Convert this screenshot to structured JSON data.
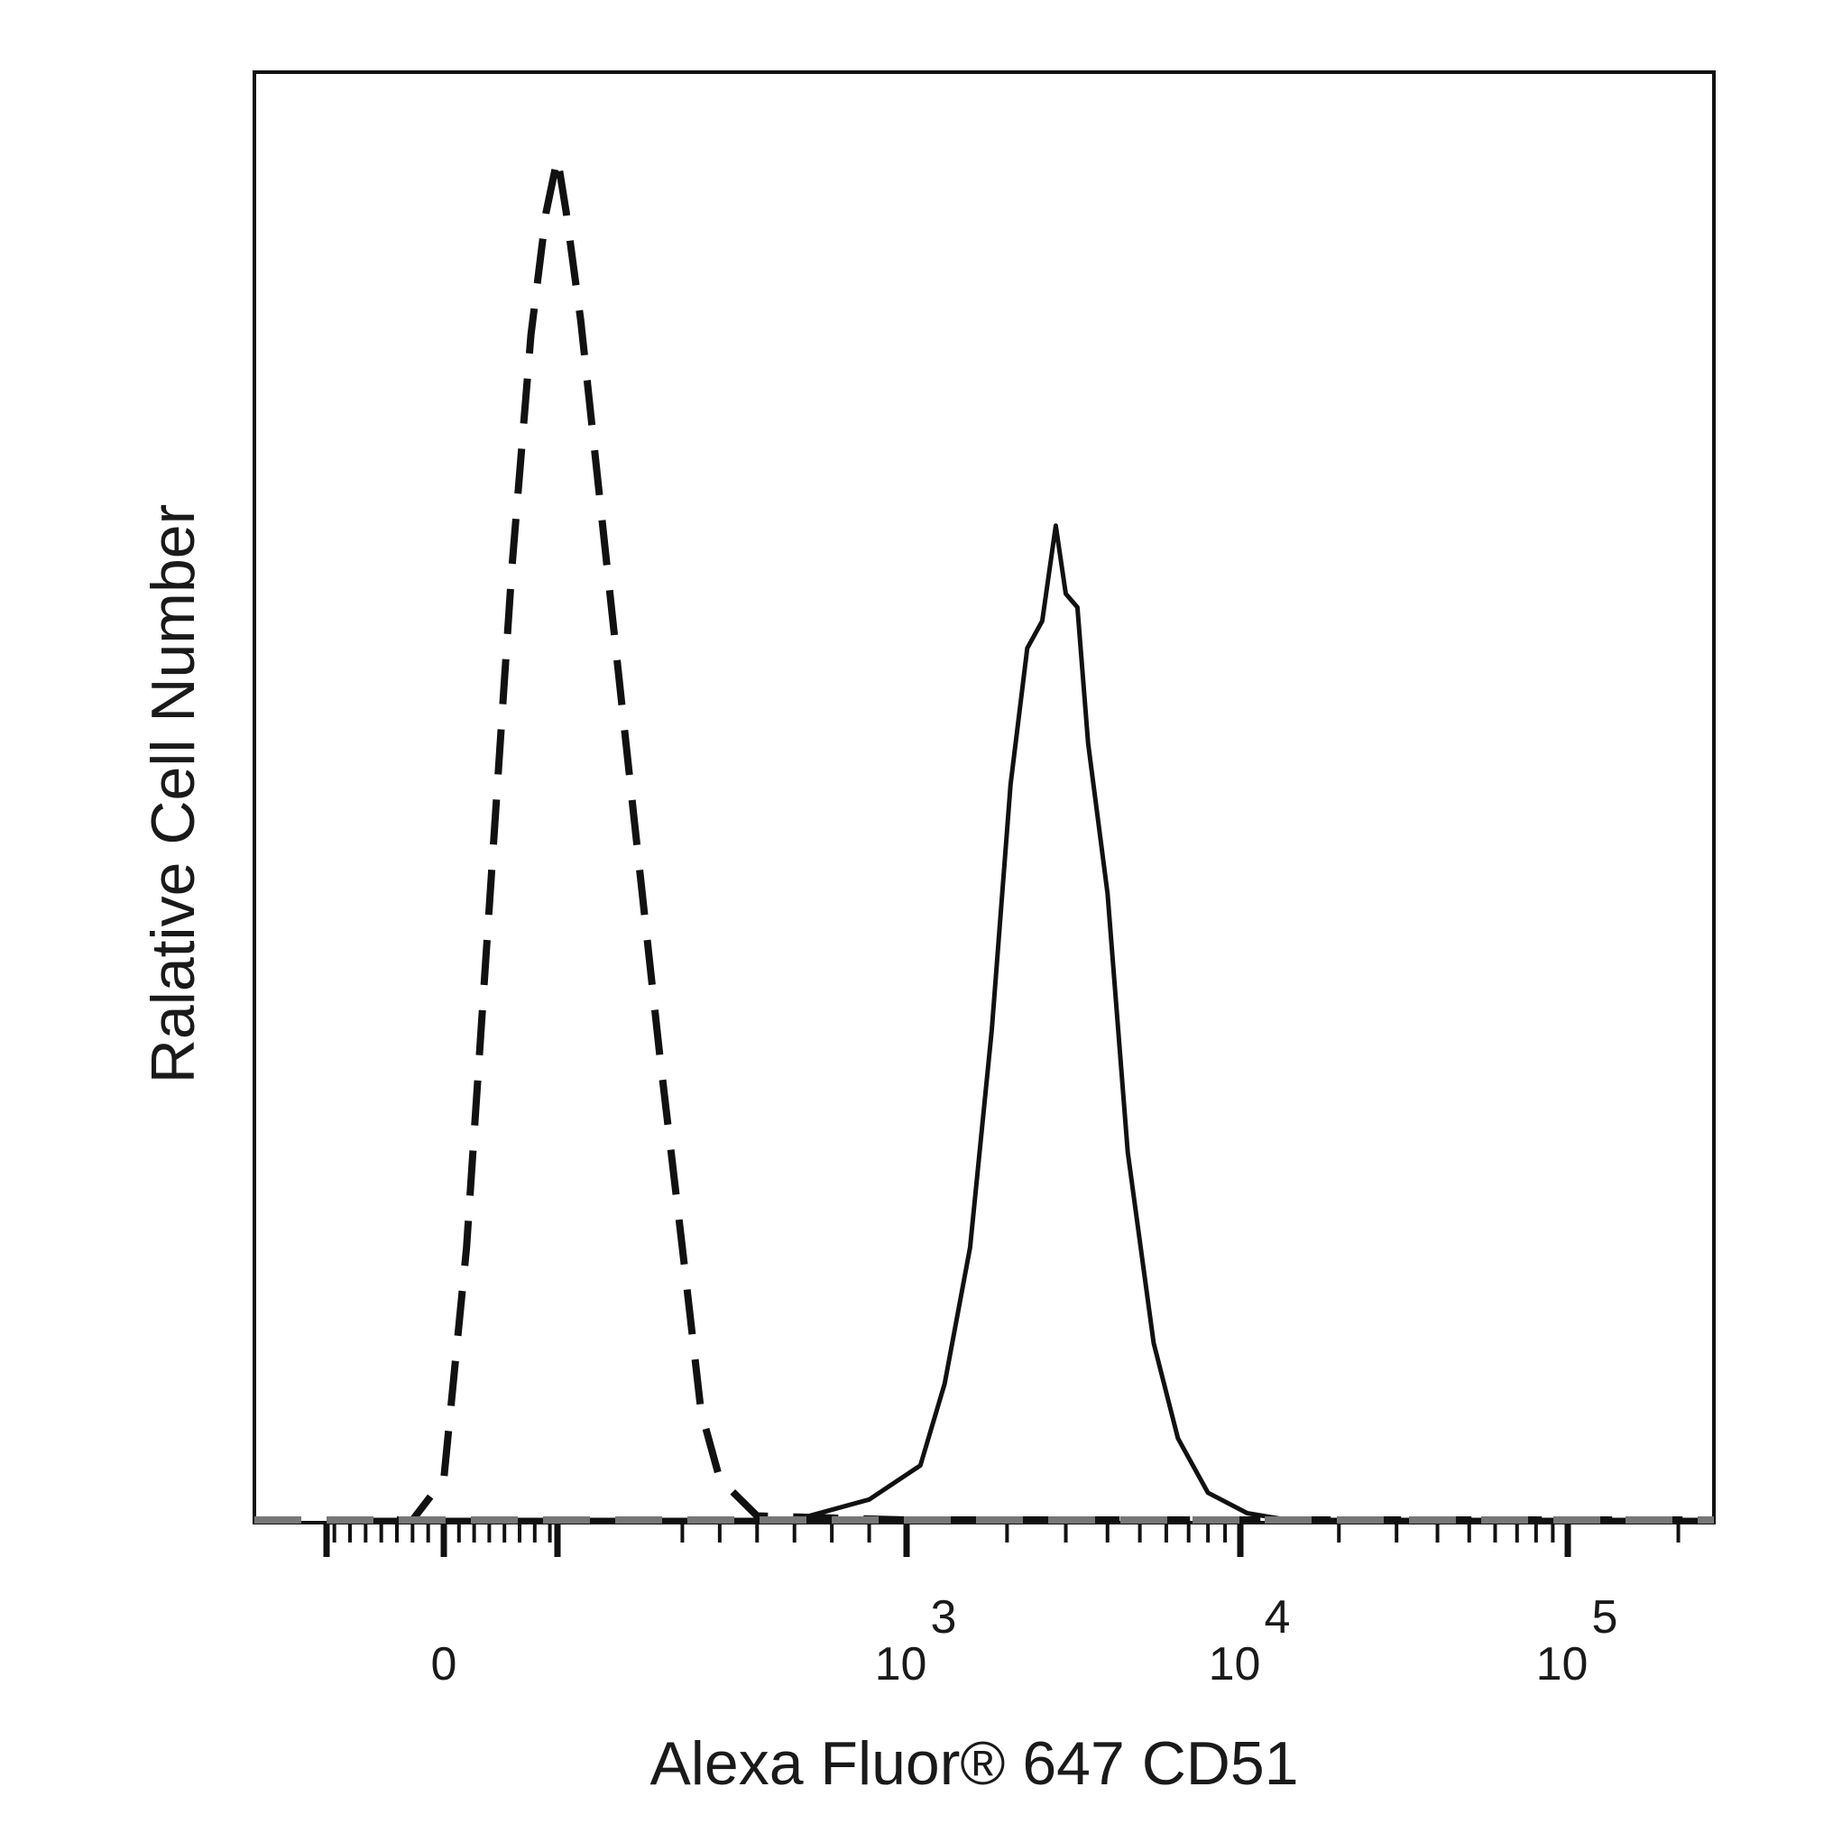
{
  "chart_data": {
    "type": "line",
    "title": "",
    "xlabel": "Alexa Fluor® 647 CD51",
    "ylabel": "Ralative Cell Number",
    "x_scale": "biexponential",
    "xlim": [
      -150,
      250000
    ],
    "ylim": [
      0,
      100
    ],
    "grid": false,
    "legend": "none",
    "x_ticks": [
      {
        "value": 0,
        "base": "0",
        "exp": ""
      },
      {
        "value": 1000,
        "base": "10",
        "exp": "3"
      },
      {
        "value": 10000,
        "base": "10",
        "exp": "4"
      },
      {
        "value": 100000,
        "base": "10",
        "exp": "5"
      }
    ],
    "series": [
      {
        "style": "dashed",
        "color": "#111111",
        "points": [
          [
            -150,
            0
          ],
          [
            -40,
            0
          ],
          [
            0,
            3
          ],
          [
            30,
            20
          ],
          [
            60,
            45
          ],
          [
            90,
            70
          ],
          [
            115,
            87
          ],
          [
            135,
            96
          ],
          [
            150,
            100
          ],
          [
            165,
            96
          ],
          [
            190,
            88
          ],
          [
            230,
            72
          ],
          [
            280,
            52
          ],
          [
            340,
            34
          ],
          [
            400,
            20
          ],
          [
            450,
            8
          ],
          [
            500,
            3
          ],
          [
            600,
            0.3
          ],
          [
            1000,
            0
          ],
          [
            250000,
            0
          ]
        ]
      },
      {
        "style": "solid",
        "color": "#111111",
        "points": [
          [
            -150,
            0
          ],
          [
            700,
            0
          ],
          [
            900,
            1.5
          ],
          [
            1100,
            4
          ],
          [
            1300,
            10
          ],
          [
            1550,
            20
          ],
          [
            1800,
            36
          ],
          [
            2050,
            54
          ],
          [
            2300,
            64
          ],
          [
            2550,
            66
          ],
          [
            2800,
            73
          ],
          [
            3000,
            68
          ],
          [
            3250,
            67
          ],
          [
            3500,
            57
          ],
          [
            4000,
            46
          ],
          [
            4600,
            27
          ],
          [
            5500,
            13
          ],
          [
            6500,
            6
          ],
          [
            8000,
            2
          ],
          [
            10500,
            0.5
          ],
          [
            14000,
            0
          ],
          [
            250000,
            0
          ]
        ]
      }
    ]
  }
}
